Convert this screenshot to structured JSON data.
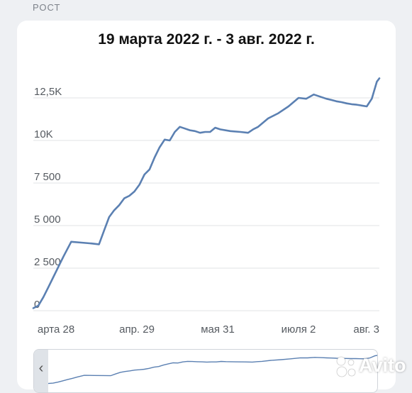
{
  "section_label": "РОСТ",
  "card": {
    "title": "19 марта 2022 г. - 3 авг. 2022 г.",
    "navigator_left_icon": "chevron-left-icon",
    "navigator_left_glyph": "‹"
  },
  "watermark": {
    "text": "Avito",
    "icon": "avito-dots-icon"
  },
  "colors": {
    "line": "#5b80b2",
    "grid": "#e1e3e6",
    "tick": "#555a60",
    "background": "#eef0f3",
    "card": "#ffffff"
  },
  "chart_data": {
    "type": "line",
    "title": "19 марта 2022 г. - 3 авг. 2022 г.",
    "xlabel": "",
    "ylabel": "",
    "x_tick_labels": [
      "арта 28",
      "апр. 29",
      "мая 31",
      "июля 2",
      "авг. 3"
    ],
    "y_tick_labels": [
      "0",
      "2 500",
      "5 000",
      "7 500",
      "10K",
      "12,5K"
    ],
    "y_ticks": [
      0,
      2500,
      5000,
      7500,
      10000,
      12500
    ],
    "ylim": [
      0,
      15000
    ],
    "xlim": [
      "2022-03-19",
      "2022-08-03"
    ],
    "grid": true,
    "legend": "none",
    "series": [
      {
        "x": [
          "2022-03-19",
          "2022-03-21",
          "2022-03-23",
          "2022-03-25",
          "2022-03-27",
          "2022-03-29",
          "2022-03-31",
          "2022-04-03",
          "2022-04-07",
          "2022-04-11",
          "2022-04-14",
          "2022-04-16",
          "2022-04-18",
          "2022-04-20",
          "2022-04-22",
          "2022-04-24",
          "2022-04-26",
          "2022-04-28",
          "2022-04-30",
          "2022-05-02",
          "2022-05-04",
          "2022-05-06",
          "2022-05-08",
          "2022-05-10",
          "2022-05-12",
          "2022-05-14",
          "2022-05-16",
          "2022-05-18",
          "2022-05-20",
          "2022-05-22",
          "2022-05-24",
          "2022-05-26",
          "2022-05-28",
          "2022-05-30",
          "2022-06-01",
          "2022-06-05",
          "2022-06-09",
          "2022-06-12",
          "2022-06-14",
          "2022-06-16",
          "2022-06-20",
          "2022-06-24",
          "2022-06-28",
          "2022-07-02",
          "2022-07-05",
          "2022-07-08",
          "2022-07-11",
          "2022-07-13",
          "2022-07-15",
          "2022-07-17",
          "2022-07-19",
          "2022-07-21",
          "2022-07-23",
          "2022-07-25",
          "2022-07-27",
          "2022-07-29",
          "2022-07-31",
          "2022-08-02",
          "2022-08-03"
        ],
        "y": [
          150,
          300,
          800,
          1400,
          2000,
          2600,
          3200,
          4050,
          4000,
          3950,
          3900,
          4700,
          5500,
          5900,
          6200,
          6600,
          6750,
          7000,
          7400,
          8000,
          8300,
          9000,
          9600,
          10050,
          10000,
          10500,
          10800,
          10700,
          10600,
          10550,
          10450,
          10500,
          10500,
          10750,
          10650,
          10550,
          10500,
          10450,
          10650,
          10800,
          11300,
          11600,
          12000,
          12500,
          12450,
          12700,
          12550,
          12450,
          12380,
          12300,
          12250,
          12180,
          12130,
          12100,
          12050,
          12000,
          12450,
          13450,
          13650
        ]
      }
    ]
  }
}
